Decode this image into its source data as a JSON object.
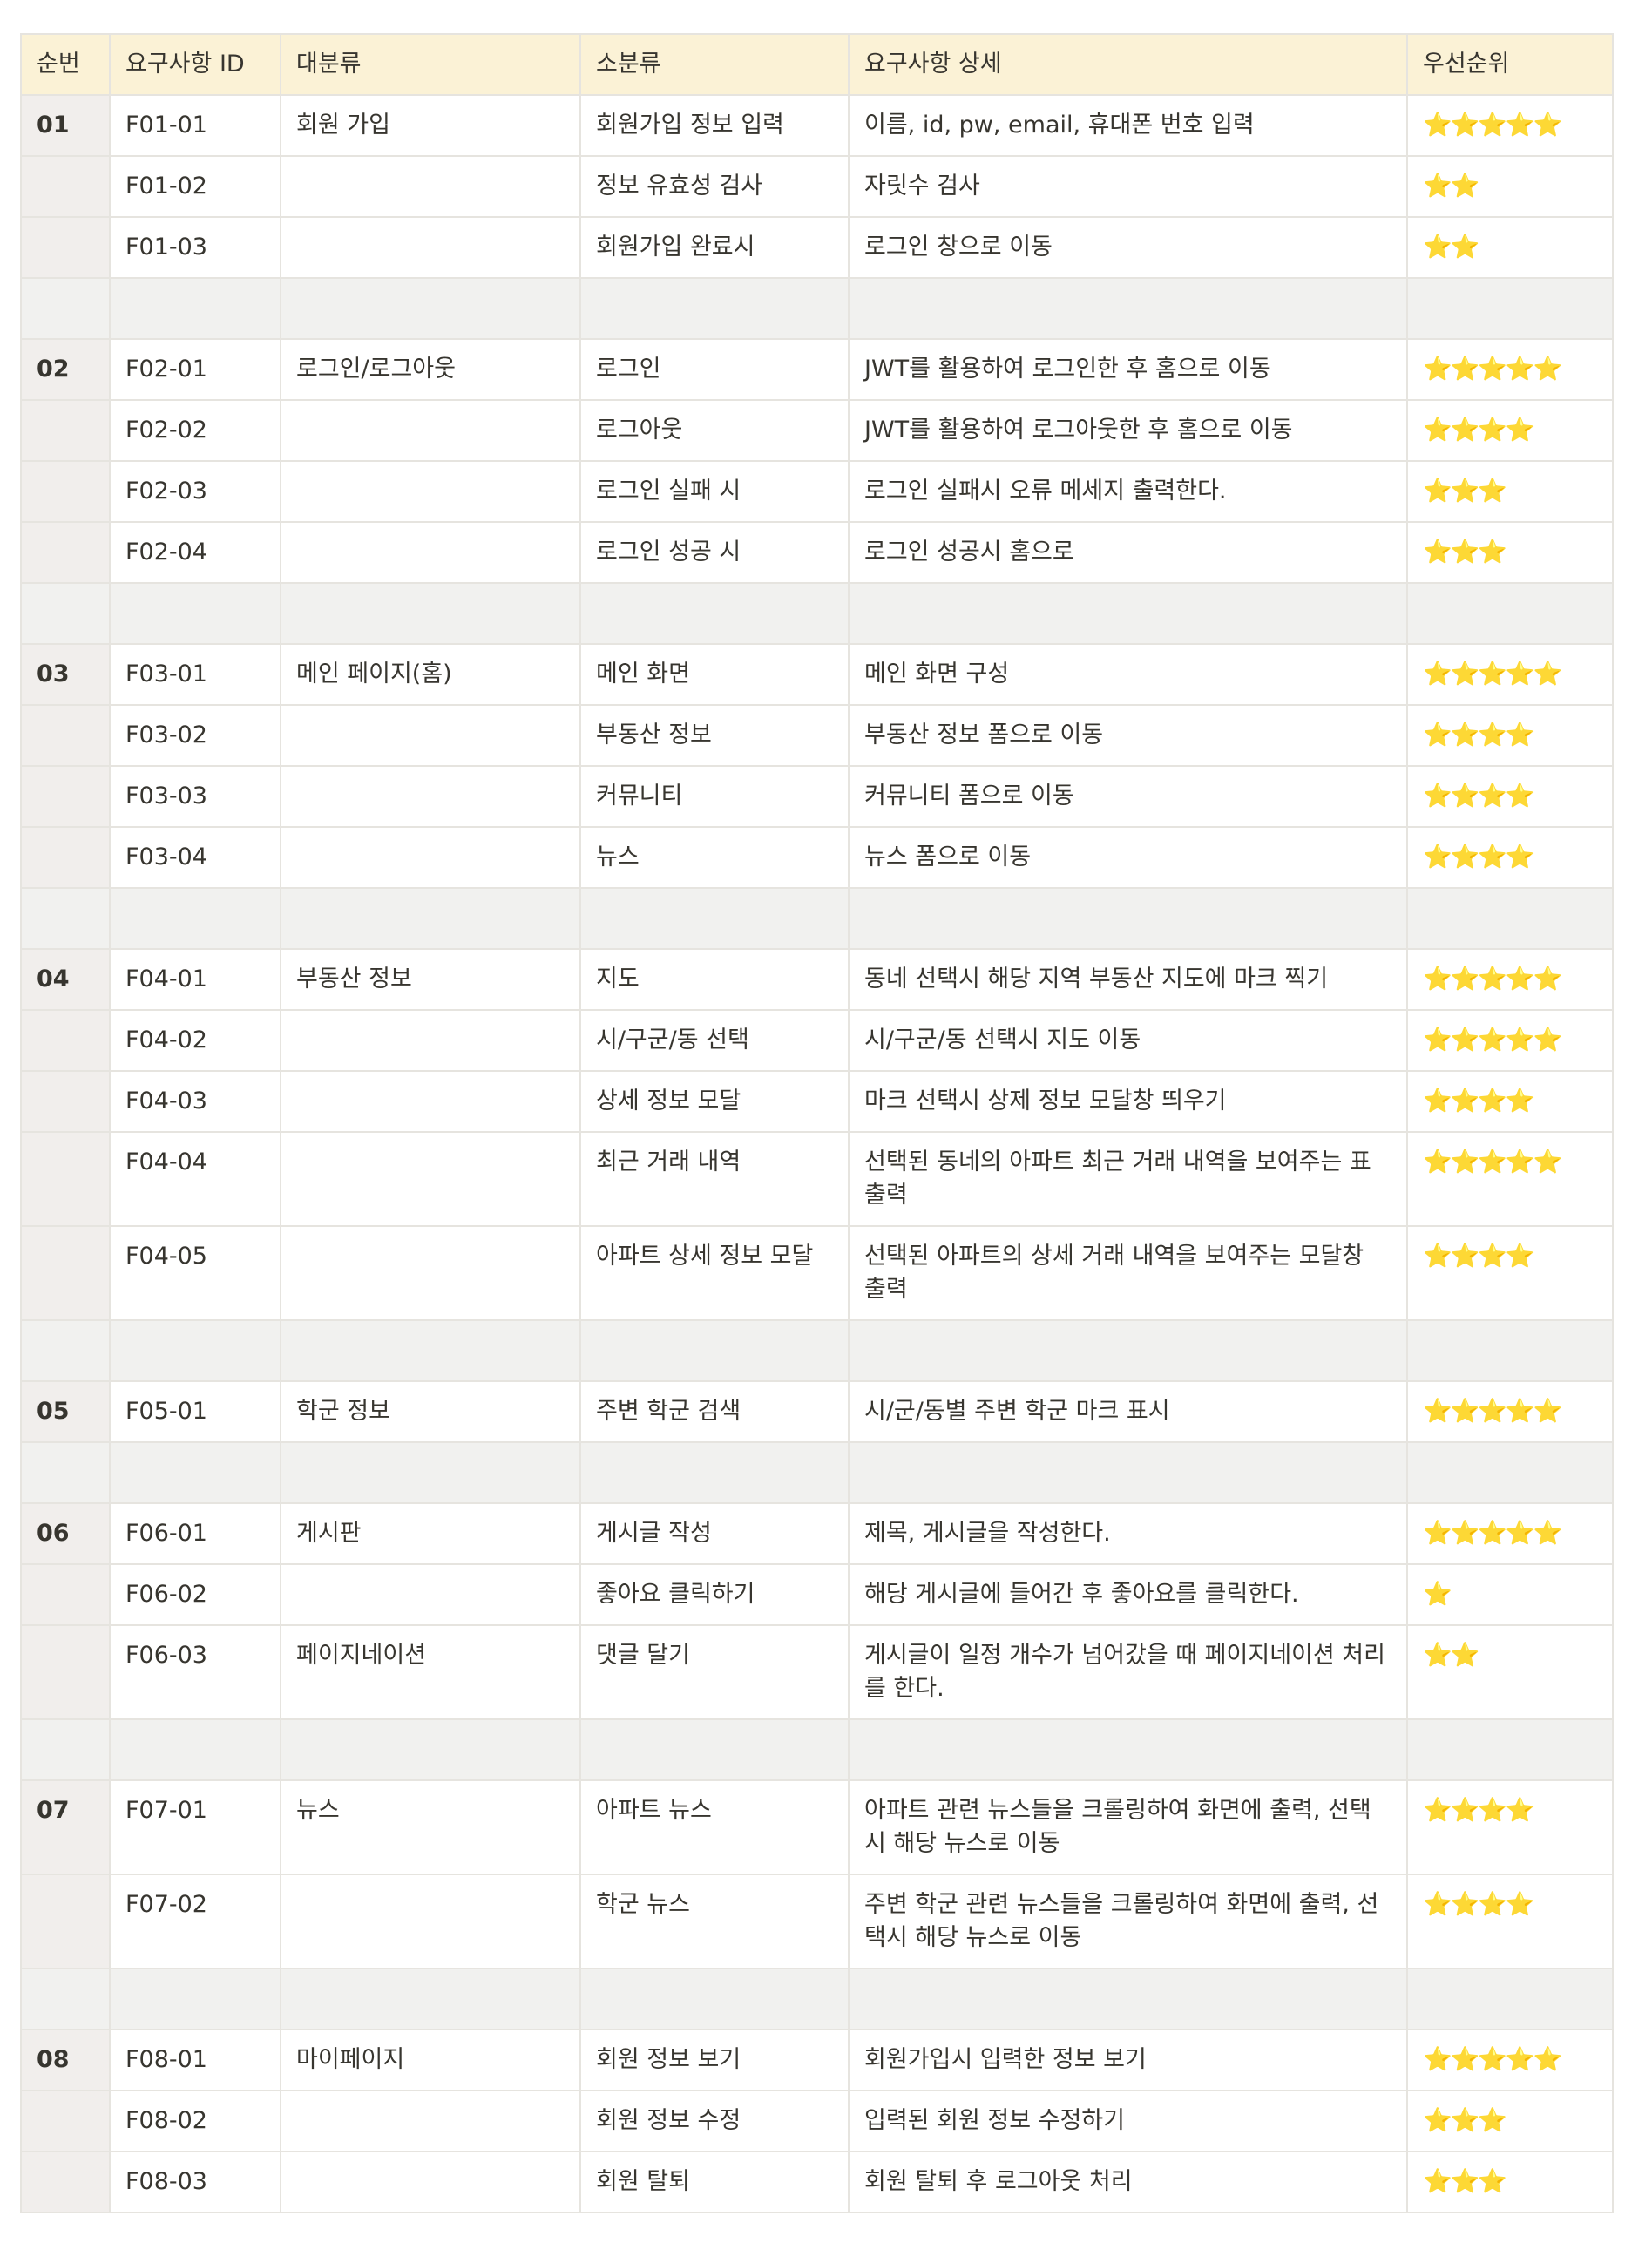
{
  "headers": [
    "순번",
    "요구사항 ID",
    "대분류",
    "소분류",
    "요구사항 상세",
    "우선순위"
  ],
  "rows": [
    {
      "type": "data",
      "seq": "01",
      "id": "F01-01",
      "major": "회원 가입",
      "minor": "회원가입 정보 입력",
      "detail": "이름, id, pw, email, 휴대폰 번호 입력",
      "priority": "⭐⭐⭐⭐⭐"
    },
    {
      "type": "data",
      "seq": "",
      "id": "F01-02",
      "major": "",
      "minor": "정보 유효성 검사",
      "detail": "자릿수 검사",
      "priority": "⭐⭐"
    },
    {
      "type": "data",
      "seq": "",
      "id": "F01-03",
      "major": "",
      "minor": "회원가입 완료시",
      "detail": "로그인 창으로 이동",
      "priority": "⭐⭐"
    },
    {
      "type": "sep"
    },
    {
      "type": "data",
      "seq": "02",
      "id": "F02-01",
      "major": "로그인/로그아웃",
      "minor": "로그인",
      "detail": "JWT를 활용하여 로그인한 후 홈으로 이동",
      "priority": "⭐⭐⭐⭐⭐"
    },
    {
      "type": "data",
      "seq": "",
      "id": "F02-02",
      "major": "",
      "minor": "로그아웃",
      "detail": "JWT를 활용하여 로그아웃한 후 홈으로 이동",
      "priority": "⭐⭐⭐⭐"
    },
    {
      "type": "data",
      "seq": "",
      "id": "F02-03",
      "major": "",
      "minor": "로그인 실패 시",
      "detail": "로그인 실패시 오류 메세지 출력한다.",
      "priority": "⭐⭐⭐"
    },
    {
      "type": "data",
      "seq": "",
      "id": "F02-04",
      "major": "",
      "minor": "로그인 성공 시",
      "detail": "로그인 성공시 홈으로",
      "priority": "⭐⭐⭐"
    },
    {
      "type": "sep"
    },
    {
      "type": "data",
      "seq": "03",
      "id": "F03-01",
      "major": "메인 페이지(홈)",
      "minor": "메인 화면",
      "detail": "메인 화면 구성",
      "priority": "⭐⭐⭐⭐⭐"
    },
    {
      "type": "data",
      "seq": "",
      "id": "F03-02",
      "major": "",
      "minor": "부동산 정보",
      "detail": "부동산 정보 폼으로 이동",
      "priority": "⭐⭐⭐⭐"
    },
    {
      "type": "data",
      "seq": "",
      "id": "F03-03",
      "major": "",
      "minor": "커뮤니티",
      "detail": "커뮤니티 폼으로 이동",
      "priority": "⭐⭐⭐⭐"
    },
    {
      "type": "data",
      "seq": "",
      "id": "F03-04",
      "major": "",
      "minor": "뉴스",
      "detail": "뉴스 폼으로 이동",
      "priority": "⭐⭐⭐⭐"
    },
    {
      "type": "sep"
    },
    {
      "type": "data",
      "seq": "04",
      "id": "F04-01",
      "major": "부동산 정보",
      "minor": "지도",
      "detail": "동네 선택시 해당 지역 부동산 지도에 마크 찍기",
      "priority": "⭐⭐⭐⭐⭐"
    },
    {
      "type": "data",
      "seq": "",
      "id": "F04-02",
      "major": "",
      "minor": "시/구군/동 선택",
      "detail": "시/구군/동 선택시 지도 이동",
      "priority": "⭐⭐⭐⭐⭐"
    },
    {
      "type": "data",
      "seq": "",
      "id": "F04-03",
      "major": "",
      "minor": "상세 정보 모달",
      "detail": "마크 선택시 상제 정보 모달창 띄우기",
      "priority": "⭐⭐⭐⭐"
    },
    {
      "type": "data",
      "seq": "",
      "id": "F04-04",
      "major": "",
      "minor": "최근 거래 내역",
      "detail": "선택된 동네의 아파트 최근 거래 내역을 보여주는 표 출력",
      "priority": "⭐⭐⭐⭐⭐",
      "tall": true
    },
    {
      "type": "data",
      "seq": "",
      "id": "F04-05",
      "major": "",
      "minor": "아파트 상세 정보 모달",
      "detail": "선택된 아파트의 상세 거래 내역을 보여주는 모달창 출력",
      "priority": "⭐⭐⭐⭐",
      "tall": true
    },
    {
      "type": "sep"
    },
    {
      "type": "data",
      "seq": "05",
      "id": "F05-01",
      "major": "학군 정보",
      "minor": "주변 학군 검색",
      "detail": "시/군/동별 주변 학군 마크 표시",
      "priority": "⭐⭐⭐⭐⭐"
    },
    {
      "type": "sep"
    },
    {
      "type": "data",
      "seq": "06",
      "id": "F06-01",
      "major": "게시판",
      "minor": "게시글 작성",
      "detail": "제목, 게시글을 작성한다.",
      "priority": "⭐⭐⭐⭐⭐"
    },
    {
      "type": "data",
      "seq": "",
      "id": "F06-02",
      "major": "",
      "minor": "좋아요 클릭하기",
      "detail": "해당 게시글에 들어간 후 좋아요를 클릭한다.",
      "priority": "⭐"
    },
    {
      "type": "data",
      "seq": "",
      "id": "F06-03",
      "major": "페이지네이션",
      "minor": "댓글 달기",
      "detail": "게시글이 일정 개수가 넘어갔을 때 페이지네이션 처리를 한다.",
      "priority": "⭐⭐",
      "tall": true
    },
    {
      "type": "sep"
    },
    {
      "type": "data",
      "seq": "07",
      "id": "F07-01",
      "major": "뉴스",
      "minor": "아파트 뉴스",
      "detail": "아파트 관련 뉴스들을 크롤링하여 화면에 출력, 선택시 해당 뉴스로 이동",
      "priority": "⭐⭐⭐⭐",
      "tall": true
    },
    {
      "type": "data",
      "seq": "",
      "id": "F07-02",
      "major": "",
      "minor": "학군 뉴스",
      "detail": "주변 학군 관련 뉴스들을 크롤링하여 화면에 출력, 선택시 해당 뉴스로 이동",
      "priority": "⭐⭐⭐⭐",
      "tall": true
    },
    {
      "type": "sep"
    },
    {
      "type": "data",
      "seq": "08",
      "id": "F08-01",
      "major": "마이페이지",
      "minor": "회원 정보 보기",
      "detail": "회원가입시 입력한 정보 보기",
      "priority": "⭐⭐⭐⭐⭐"
    },
    {
      "type": "data",
      "seq": "",
      "id": "F08-02",
      "major": "",
      "minor": "회원 정보 수정",
      "detail": "입력된 회원 정보 수정하기",
      "priority": "⭐⭐⭐"
    },
    {
      "type": "data",
      "seq": "",
      "id": "F08-03",
      "major": "",
      "minor": "회원 탈퇴",
      "detail": "회원 탈퇴 후 로그아웃 처리",
      "priority": "⭐⭐⭐"
    }
  ]
}
